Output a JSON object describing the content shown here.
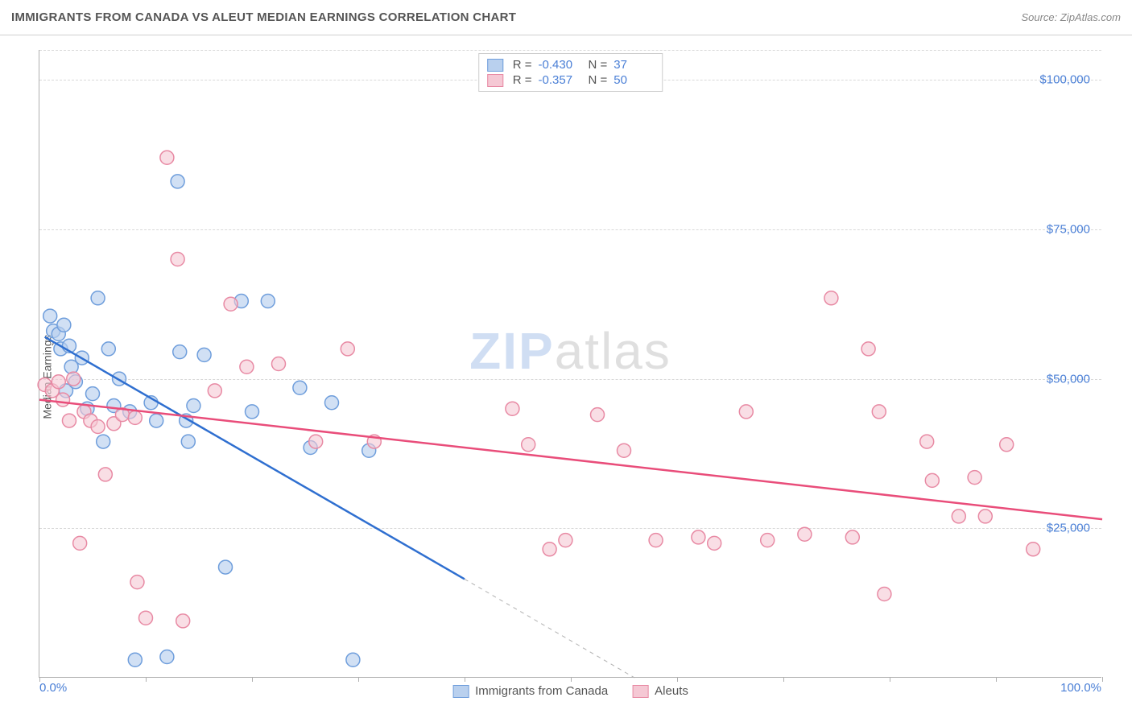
{
  "header": {
    "title": "IMMIGRANTS FROM CANADA VS ALEUT MEDIAN EARNINGS CORRELATION CHART",
    "source_prefix": "Source: ",
    "source_name": "ZipAtlas.com"
  },
  "chart": {
    "type": "scatter",
    "ylabel": "Median Earnings",
    "xlim": [
      0,
      100
    ],
    "ylim": [
      0,
      105000
    ],
    "x_tick_left": "0.0%",
    "x_tick_right": "100.0%",
    "y_ticks": [
      {
        "value": 25000,
        "label": "$25,000"
      },
      {
        "value": 50000,
        "label": "$50,000"
      },
      {
        "value": 75000,
        "label": "$75,000"
      },
      {
        "value": 100000,
        "label": "$100,000"
      }
    ],
    "y_gridlines": [
      25000,
      50000,
      75000,
      100000,
      105000
    ],
    "x_tickmarks": [
      0,
      10,
      20,
      30,
      40,
      50,
      60,
      70,
      80,
      90,
      100
    ],
    "background_color": "#ffffff",
    "grid_color": "#d8d8d8",
    "axis_color": "#b0b0b0",
    "marker_radius": 8.5,
    "marker_stroke_width": 1.5,
    "watermark": {
      "part1": "ZIP",
      "part2": "atlas"
    },
    "series": [
      {
        "id": "canada",
        "name": "Immigrants from Canada",
        "fill": "#b9d0ee",
        "fill_opacity": 0.65,
        "stroke": "#6f9edc",
        "line_color": "#2f6fd0",
        "line_width": 2.5,
        "R_label": "R =",
        "R_value": "-0.430",
        "N_label": "N =",
        "N_value": "37",
        "trend": {
          "x1": 0.5,
          "y1": 57000,
          "x2": 40,
          "y2": 16500
        },
        "trend_extrap": {
          "x1": 40,
          "y1": 16500,
          "x2": 56,
          "y2": 0
        },
        "points": [
          {
            "x": 1.0,
            "y": 60500
          },
          {
            "x": 1.3,
            "y": 58000
          },
          {
            "x": 1.8,
            "y": 57500
          },
          {
            "x": 2.0,
            "y": 55000
          },
          {
            "x": 2.3,
            "y": 59000
          },
          {
            "x": 2.5,
            "y": 48000
          },
          {
            "x": 2.8,
            "y": 55500
          },
          {
            "x": 3.0,
            "y": 52000
          },
          {
            "x": 3.4,
            "y": 49500
          },
          {
            "x": 4.0,
            "y": 53500
          },
          {
            "x": 4.5,
            "y": 45000
          },
          {
            "x": 5.0,
            "y": 47500
          },
          {
            "x": 5.5,
            "y": 63500
          },
          {
            "x": 6.0,
            "y": 39500
          },
          {
            "x": 6.5,
            "y": 55000
          },
          {
            "x": 7.0,
            "y": 45500
          },
          {
            "x": 7.5,
            "y": 50000
          },
          {
            "x": 8.5,
            "y": 44500
          },
          {
            "x": 9.0,
            "y": 3000
          },
          {
            "x": 10.5,
            "y": 46000
          },
          {
            "x": 11.0,
            "y": 43000
          },
          {
            "x": 12.0,
            "y": 3500
          },
          {
            "x": 13.0,
            "y": 83000
          },
          {
            "x": 13.2,
            "y": 54500
          },
          {
            "x": 13.8,
            "y": 43000
          },
          {
            "x": 14.0,
            "y": 39500
          },
          {
            "x": 14.5,
            "y": 45500
          },
          {
            "x": 15.5,
            "y": 54000
          },
          {
            "x": 17.5,
            "y": 18500
          },
          {
            "x": 19.0,
            "y": 63000
          },
          {
            "x": 20.0,
            "y": 44500
          },
          {
            "x": 21.5,
            "y": 63000
          },
          {
            "x": 24.5,
            "y": 48500
          },
          {
            "x": 25.5,
            "y": 38500
          },
          {
            "x": 27.5,
            "y": 46000
          },
          {
            "x": 29.5,
            "y": 3000
          },
          {
            "x": 31.0,
            "y": 38000
          }
        ]
      },
      {
        "id": "aleuts",
        "name": "Aleuts",
        "fill": "#f5c8d4",
        "fill_opacity": 0.6,
        "stroke": "#e88aa4",
        "line_color": "#e94d7a",
        "line_width": 2.5,
        "R_label": "R =",
        "R_value": "-0.357",
        "N_label": "N =",
        "N_value": "50",
        "trend": {
          "x1": 0,
          "y1": 46500,
          "x2": 100,
          "y2": 26500
        },
        "points": [
          {
            "x": 0.5,
            "y": 49000
          },
          {
            "x": 1.2,
            "y": 48000
          },
          {
            "x": 1.8,
            "y": 49500
          },
          {
            "x": 2.2,
            "y": 46500
          },
          {
            "x": 2.8,
            "y": 43000
          },
          {
            "x": 3.2,
            "y": 50000
          },
          {
            "x": 3.8,
            "y": 22500
          },
          {
            "x": 4.2,
            "y": 44500
          },
          {
            "x": 4.8,
            "y": 43000
          },
          {
            "x": 5.5,
            "y": 42000
          },
          {
            "x": 6.2,
            "y": 34000
          },
          {
            "x": 7.0,
            "y": 42500
          },
          {
            "x": 7.8,
            "y": 44000
          },
          {
            "x": 9.0,
            "y": 43500
          },
          {
            "x": 9.2,
            "y": 16000
          },
          {
            "x": 10.0,
            "y": 10000
          },
          {
            "x": 12.0,
            "y": 87000
          },
          {
            "x": 13.0,
            "y": 70000
          },
          {
            "x": 13.5,
            "y": 9500
          },
          {
            "x": 16.5,
            "y": 48000
          },
          {
            "x": 18.0,
            "y": 62500
          },
          {
            "x": 19.5,
            "y": 52000
          },
          {
            "x": 22.5,
            "y": 52500
          },
          {
            "x": 26.0,
            "y": 39500
          },
          {
            "x": 29.0,
            "y": 55000
          },
          {
            "x": 31.5,
            "y": 39500
          },
          {
            "x": 44.5,
            "y": 45000
          },
          {
            "x": 46.0,
            "y": 39000
          },
          {
            "x": 48.0,
            "y": 21500
          },
          {
            "x": 49.5,
            "y": 23000
          },
          {
            "x": 52.5,
            "y": 44000
          },
          {
            "x": 55.0,
            "y": 38000
          },
          {
            "x": 58.0,
            "y": 23000
          },
          {
            "x": 62.0,
            "y": 23500
          },
          {
            "x": 63.5,
            "y": 22500
          },
          {
            "x": 66.5,
            "y": 44500
          },
          {
            "x": 68.5,
            "y": 23000
          },
          {
            "x": 72.0,
            "y": 24000
          },
          {
            "x": 74.5,
            "y": 63500
          },
          {
            "x": 76.5,
            "y": 23500
          },
          {
            "x": 78.0,
            "y": 55000
          },
          {
            "x": 79.0,
            "y": 44500
          },
          {
            "x": 79.5,
            "y": 14000
          },
          {
            "x": 83.5,
            "y": 39500
          },
          {
            "x": 84.0,
            "y": 33000
          },
          {
            "x": 86.5,
            "y": 27000
          },
          {
            "x": 88.0,
            "y": 33500
          },
          {
            "x": 89.0,
            "y": 27000
          },
          {
            "x": 91.0,
            "y": 39000
          },
          {
            "x": 93.5,
            "y": 21500
          }
        ]
      }
    ],
    "legend_bottom": [
      {
        "ref": "canada"
      },
      {
        "ref": "aleuts"
      }
    ]
  }
}
